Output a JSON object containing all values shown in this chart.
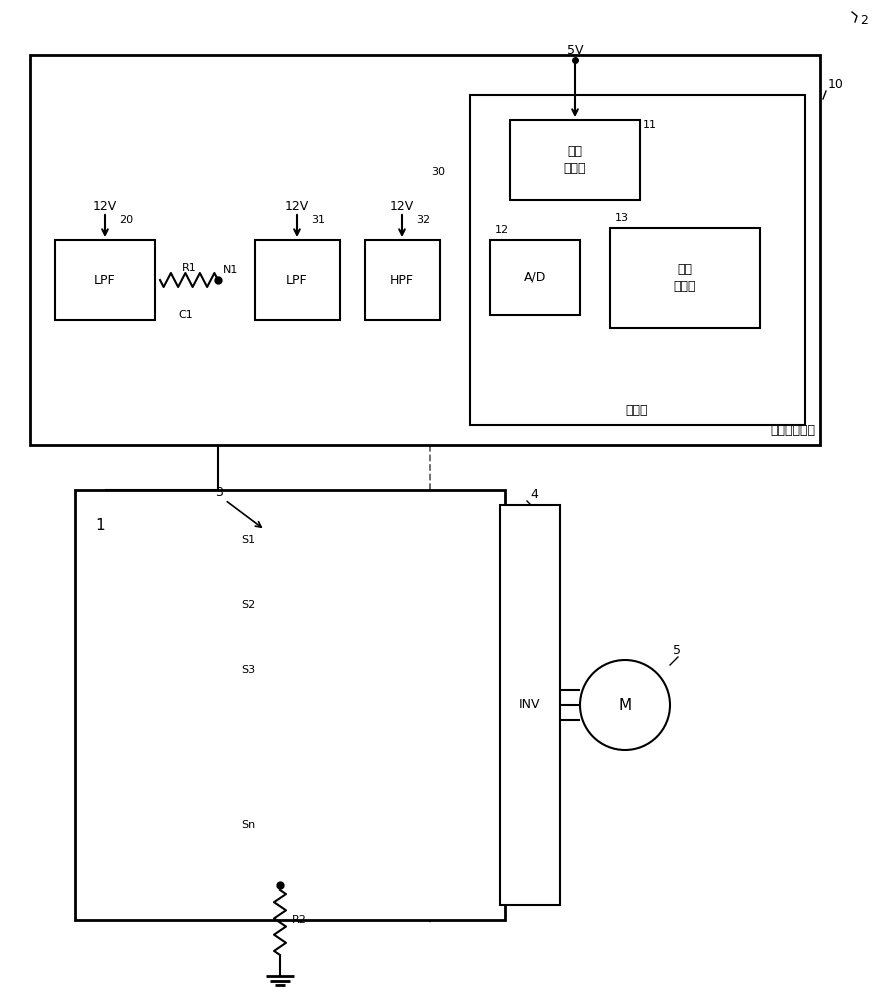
{
  "bg_color": "#ffffff",
  "lc": "#000000",
  "fig_w": 8.75,
  "fig_h": 10.0,
  "labels": {
    "lpf1": "LPF",
    "lpf2": "LPF",
    "hpf": "HPF",
    "ad": "A/D",
    "judge": "接地\n判定部",
    "osc": "局部\n振荡器",
    "inv": "INV",
    "motor": "M",
    "ctrl": "控制部",
    "gnd_detect": "接地检测装置",
    "r1": "R1",
    "r2": "R2",
    "c1": "C1",
    "n1": "N1",
    "v5": "5V",
    "v12a": "12V",
    "v12b": "12V",
    "v12c": "12V",
    "ref2": "2",
    "ref10": "10",
    "ref11": "11",
    "ref12": "12",
    "ref13": "13",
    "ref20": "20",
    "ref30": "30",
    "ref31": "31",
    "ref32": "32",
    "ref1": "1",
    "ref3": "3",
    "ref4": "4",
    "ref5": "5",
    "s1": "S1",
    "s2": "S2",
    "s3": "S3",
    "sn": "Sn"
  }
}
